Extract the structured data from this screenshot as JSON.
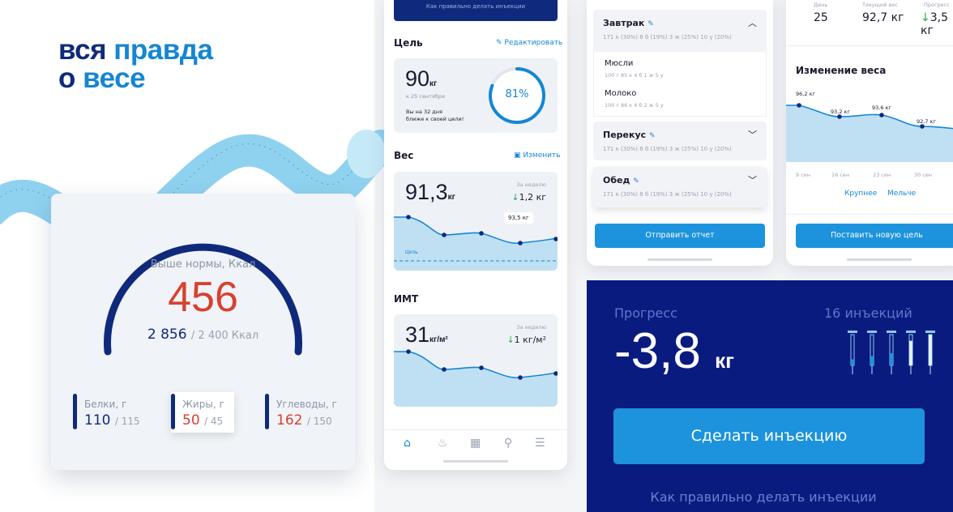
{
  "headline": {
    "line1a": "вся",
    "line1b": "правда",
    "line2a": "о",
    "line2b": "весе"
  },
  "calories": {
    "above_label": "Выше нормы, Ккал",
    "above_value": "456",
    "consumed": "2 856",
    "norm": "/ 2 400 Ккал",
    "gauge_fraction": 0.6
  },
  "macros": [
    {
      "name": "Белки, г",
      "value": "110",
      "total": "/ 115",
      "over": false
    },
    {
      "name": "Жиры, г",
      "value": "50",
      "total": "/ 45",
      "over": true
    },
    {
      "name": "Углеводы, г",
      "value": "162",
      "total": "/ 150",
      "over": true
    }
  ],
  "phone1": {
    "top_button": "Как правильно делать инъекции",
    "goal": {
      "title": "Цель",
      "edit": "Редактировать",
      "value": "90",
      "unit": "кг",
      "date": "к 25 сентября",
      "note1": "Вы на 32 дня",
      "note2": "ближе к своей цели!",
      "percent": "81%",
      "fraction": 0.81
    },
    "weight": {
      "title": "Вес",
      "change": "Изменить",
      "value": "91,3",
      "unit": "кг",
      "week_label": "За неделю",
      "delta": "1,2 кг",
      "callout": "93,5 кг",
      "goal_label": "Цель"
    },
    "bmi": {
      "title": "ИМТ",
      "value": "31",
      "unit": "кг/м²",
      "week_label": "За неделю",
      "delta": "1 кг/м²"
    },
    "nav": [
      "home-icon",
      "flame-icon",
      "calendar-icon",
      "location-icon",
      "menu-icon"
    ]
  },
  "phone2": {
    "meals": [
      {
        "name": "Завтрак",
        "macros": "171 к (30%)   8 б (19%)   3 ж (25%)   10 у (20%)"
      },
      {
        "name": "Перекус",
        "macros": "171 к (30%)   8 б (19%)   3 ж (25%)   10 у (20%)"
      },
      {
        "name": "Обед",
        "macros": "171 к (30%)   8 б (19%)   3 ж (25%)   10 у (20%)"
      }
    ],
    "foods": [
      {
        "name": "Мюсли",
        "macros": "100 г     85 к     4 б     1 ж     5 у"
      },
      {
        "name": "Молоко",
        "macros": "100 г     86 к     4 б     2 ж     5 у"
      }
    ],
    "send_button": "Отправить отчет"
  },
  "phone3": {
    "stats": [
      {
        "label": "День",
        "value": "25"
      },
      {
        "label": "Текущий вес",
        "value": "92,7 кг"
      },
      {
        "label": "Прогресс",
        "value": "3,5 кг"
      }
    ],
    "title": "Изменение веса",
    "points": [
      "96,2 кг",
      "93,2 кг",
      "93,6 кг",
      "92,7 кг"
    ],
    "x_labels": [
      "9 сен",
      "16 сен",
      "23 сен",
      "30 сен"
    ],
    "zoom_in": "Крупнее",
    "zoom_out": "Мельче",
    "new_goal_button": "Поставить новую цель"
  },
  "progress": {
    "label": "Прогресс",
    "value": "-3,8",
    "unit": "кг",
    "injections_label": "16 инъекций",
    "inject_button": "Сделать инъекцию",
    "howto_link": "Как правильно делать инъекции",
    "syringe_levels": [
      0.2,
      0.3,
      0.4,
      0.8,
      1.0
    ]
  },
  "colors": {
    "navy": "#0f2a7c",
    "accent": "#1486d4",
    "red": "#d8402f",
    "dark_bg": "#0a1b80",
    "button": "#1c93dc"
  }
}
